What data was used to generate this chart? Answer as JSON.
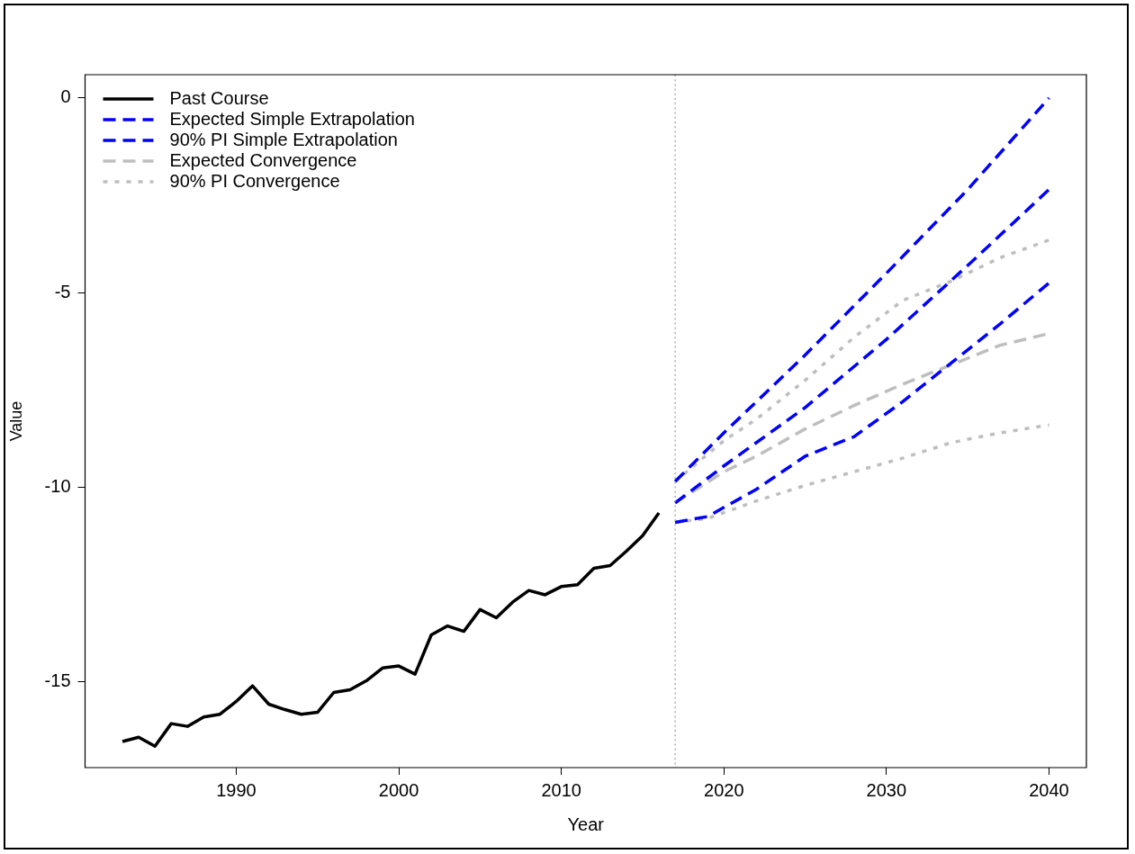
{
  "chart_data": {
    "type": "line",
    "xlabel": "Year",
    "ylabel": "Value",
    "xlim": [
      1980.7,
      2042.3
    ],
    "ylim": [
      -17.2,
      0.6
    ],
    "xticks": [
      1990,
      2000,
      2010,
      2020,
      2030,
      2040
    ],
    "yticks": [
      -15,
      -10,
      -5,
      0
    ],
    "grid": false,
    "legend": "top left",
    "ref_lines": [
      {
        "axis": "x",
        "value": 2017,
        "color": "#999999",
        "line_style": "dotted"
      }
    ],
    "series": [
      {
        "name": "Past Course",
        "color": "#000000",
        "line_style": "solid",
        "x": [
          1983,
          1984,
          1985,
          1986,
          1987,
          1988,
          1989,
          1990,
          1991,
          1992,
          1993,
          1994,
          1995,
          1996,
          1997,
          1998,
          1999,
          2000,
          2001,
          2002,
          2003,
          2004,
          2005,
          2006,
          2007,
          2008,
          2009,
          2010,
          2011,
          2012,
          2013,
          2014,
          2015,
          2016
        ],
        "values": [
          -16.53,
          -16.42,
          -16.65,
          -16.07,
          -16.14,
          -15.9,
          -15.83,
          -15.5,
          -15.1,
          -15.57,
          -15.71,
          -15.83,
          -15.78,
          -15.27,
          -15.2,
          -14.97,
          -14.64,
          -14.59,
          -14.8,
          -13.79,
          -13.56,
          -13.7,
          -13.14,
          -13.35,
          -12.95,
          -12.65,
          -12.76,
          -12.55,
          -12.5,
          -12.08,
          -12.01,
          -11.64,
          -11.24,
          -10.66
        ]
      },
      {
        "name": "Expected Simple Extrapolation",
        "color": "#0000ff",
        "line_style": "dashed",
        "x": [
          2017,
          2020,
          2025,
          2030,
          2035,
          2040
        ],
        "values": [
          -10.4,
          -9.45,
          -7.95,
          -6.2,
          -4.3,
          -2.35
        ]
      },
      {
        "name": "90% PI Simple Extrapolation",
        "color": "#0000ff",
        "line_style": "dashed",
        "x": [
          2017,
          2020,
          2025,
          2030,
          2035,
          2040
        ],
        "values": [
          -9.85,
          -8.6,
          -6.6,
          -4.5,
          -2.35,
          0
        ]
      },
      {
        "color": "#0000ff",
        "line_style": "dashed",
        "x": [
          2017,
          2019,
          2022,
          2025,
          2028,
          2031,
          2034,
          2037,
          2040
        ],
        "values": [
          -10.9,
          -10.75,
          -10.05,
          -9.2,
          -8.7,
          -7.8,
          -6.8,
          -5.8,
          -4.75
        ]
      },
      {
        "name": "Expected Convergence",
        "color": "#bebebe",
        "line_style": "dashed",
        "x": [
          2017,
          2020,
          2022,
          2025,
          2028,
          2031,
          2034,
          2037,
          2040
        ],
        "values": [
          -10.4,
          -9.6,
          -9.2,
          -8.5,
          -7.9,
          -7.35,
          -6.85,
          -6.35,
          -6.05
        ]
      },
      {
        "name": "90% PI Convergence",
        "color": "#bebebe",
        "line_style": "dotted",
        "x": [
          2017,
          2020,
          2022,
          2025,
          2028,
          2031,
          2034,
          2037,
          2040
        ],
        "values": [
          -9.85,
          -8.8,
          -8.25,
          -7.25,
          -6.15,
          -5.2,
          -4.7,
          -4.1,
          -3.65
        ]
      },
      {
        "color": "#bebebe",
        "line_style": "dotted",
        "x": [
          2017,
          2019,
          2022,
          2025,
          2028,
          2031,
          2034,
          2037,
          2040
        ],
        "values": [
          -10.9,
          -10.8,
          -10.35,
          -9.95,
          -9.6,
          -9.25,
          -8.85,
          -8.6,
          -8.4
        ]
      }
    ]
  }
}
